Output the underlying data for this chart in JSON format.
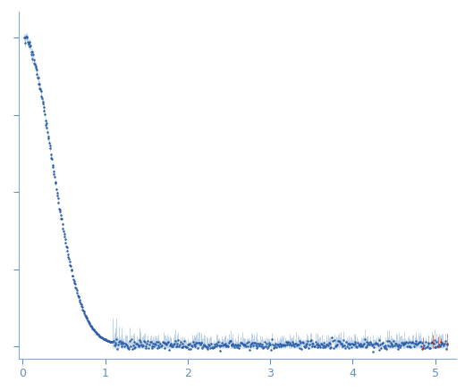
{
  "title": "",
  "xlabel": "",
  "ylabel": "",
  "xlim": [
    -0.05,
    5.25
  ],
  "dot_color": "#2b5ea7",
  "errorbar_color": "#9dbfe0",
  "red_color": "#cc2200",
  "background_color": "#ffffff",
  "tick_color": "#6090c0",
  "axis_color": "#80aad0",
  "xticks": [
    0,
    1,
    2,
    3,
    4,
    5
  ],
  "seed": 17
}
